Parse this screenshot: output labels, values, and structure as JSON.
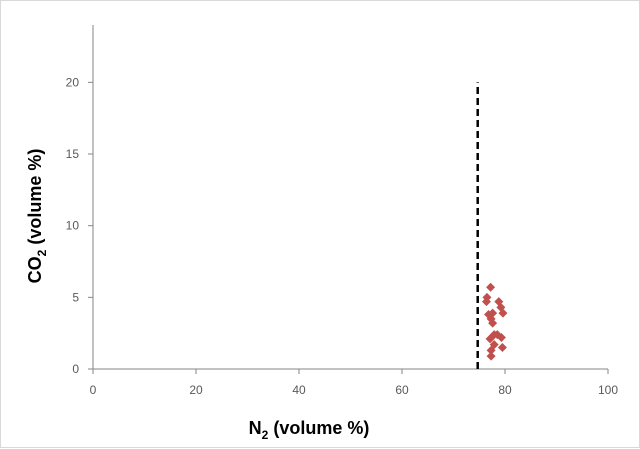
{
  "chart_data": {
    "type": "scatter",
    "xlabel_main": "N",
    "xlabel_sub": "2",
    "xlabel_rest": " (volume %)",
    "ylabel_main": "CO",
    "ylabel_sub": "2",
    "ylabel_rest": "  (volume %)",
    "xlim": [
      0,
      100
    ],
    "ylim": [
      0,
      24
    ],
    "x_ticks": [
      0,
      20,
      40,
      60,
      80,
      100
    ],
    "y_ticks": [
      0,
      5,
      10,
      15,
      20
    ],
    "grid": false,
    "legend": "none",
    "series": [
      {
        "marker": "diamond",
        "color": "#c0504d",
        "points": [
          [
            77.2,
            5.7
          ],
          [
            76.5,
            5.0
          ],
          [
            76.4,
            4.7
          ],
          [
            78.8,
            4.7
          ],
          [
            79.2,
            4.3
          ],
          [
            79.6,
            3.9
          ],
          [
            76.8,
            3.8
          ],
          [
            77.6,
            3.9
          ],
          [
            77.3,
            3.5
          ],
          [
            77.6,
            3.2
          ],
          [
            78.5,
            2.4
          ],
          [
            79.3,
            2.2
          ],
          [
            77.9,
            2.4
          ],
          [
            77.1,
            2.1
          ],
          [
            77.9,
            1.7
          ],
          [
            79.5,
            1.5
          ],
          [
            77.3,
            1.3
          ],
          [
            77.3,
            0.9
          ]
        ]
      }
    ],
    "reference_line": {
      "x": 74.7,
      "y_from": 0,
      "y_to": 20,
      "style": "dashed",
      "color": "#000000"
    }
  }
}
